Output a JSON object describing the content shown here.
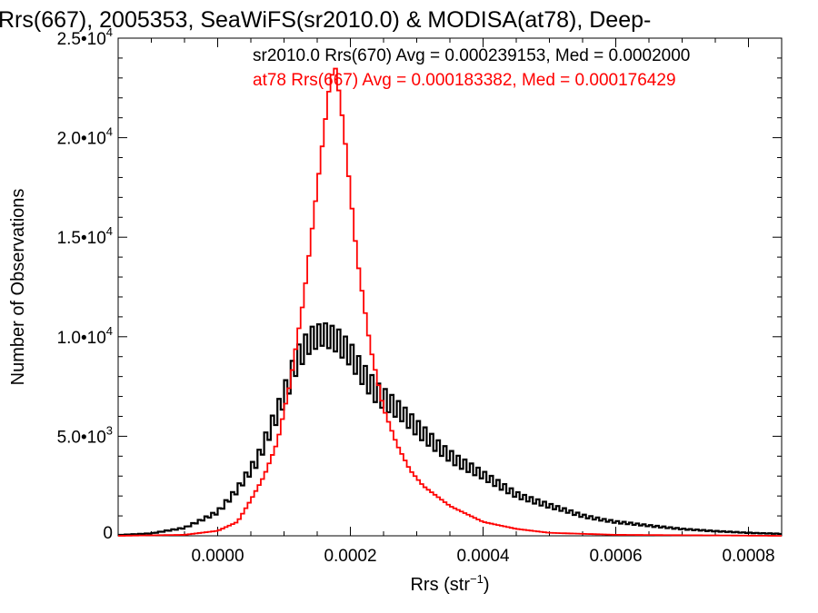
{
  "chart_data": {
    "type": "histogram",
    "title": "Rrs(667), 2005353, SeaWiFS(sr2010.0) & MODISA(at78), Deep-",
    "xlabel": "Rrs (str",
    "xlabel_sup": "−1",
    "xlabel_close": ")",
    "ylabel": "Number of Observations",
    "xlim": [
      -0.00015,
      0.00085
    ],
    "ylim": [
      0,
      25000
    ],
    "x_ticks": [
      {
        "value": 0.0,
        "label": "0.0000"
      },
      {
        "value": 0.0002,
        "label": "0.0002"
      },
      {
        "value": 0.0004,
        "label": "0.0004"
      },
      {
        "value": 0.0006,
        "label": "0.0006"
      },
      {
        "value": 0.0008,
        "label": "0.0008"
      }
    ],
    "y_ticks": [
      {
        "value": 0,
        "mant": "0",
        "exp": ""
      },
      {
        "value": 5000,
        "mant": "5.0•10",
        "exp": "3"
      },
      {
        "value": 10000,
        "mant": "1.0•10",
        "exp": "4"
      },
      {
        "value": 15000,
        "mant": "1.5•10",
        "exp": "4"
      },
      {
        "value": 20000,
        "mant": "2.0•10",
        "exp": "4"
      },
      {
        "value": 25000,
        "mant": "2.5•10",
        "exp": "4"
      }
    ],
    "bin_width": 5e-06,
    "series": [
      {
        "name": "sr2010.0 Rrs(670) Avg = 0.000239153, Med = 0.0002000",
        "color": "#000000",
        "curve": [
          [
            -0.00015,
            40
          ],
          [
            -0.0001,
            120
          ],
          [
            -5e-05,
            400
          ],
          [
            0.0,
            1200
          ],
          [
            3e-05,
            2300
          ],
          [
            6e-05,
            3800
          ],
          [
            9e-05,
            6300
          ],
          [
            0.00012,
            8900
          ],
          [
            0.00014,
            9800
          ],
          [
            0.00016,
            10000
          ],
          [
            0.00018,
            9800
          ],
          [
            0.0002,
            9200
          ],
          [
            0.00022,
            8200
          ],
          [
            0.00024,
            7200
          ],
          [
            0.00026,
            6600
          ],
          [
            0.00028,
            6000
          ],
          [
            0.0003,
            5400
          ],
          [
            0.00033,
            4600
          ],
          [
            0.00036,
            3800
          ],
          [
            0.0004,
            3000
          ],
          [
            0.00045,
            2100
          ],
          [
            0.0005,
            1500
          ],
          [
            0.00055,
            1000
          ],
          [
            0.0006,
            700
          ],
          [
            0.00065,
            500
          ],
          [
            0.0007,
            350
          ],
          [
            0.00075,
            230
          ],
          [
            0.0008,
            150
          ],
          [
            0.00085,
            100
          ]
        ],
        "noise": 700
      },
      {
        "name": "at78 Rrs(667) Avg = 0.000183382, Med = 0.000176429",
        "color": "#ff0000",
        "curve": [
          [
            -0.00015,
            0
          ],
          [
            -5e-05,
            50
          ],
          [
            0.0,
            250
          ],
          [
            3e-05,
            700
          ],
          [
            5e-05,
            1800
          ],
          [
            7e-05,
            3000
          ],
          [
            9e-05,
            4700
          ],
          [
            0.00011,
            7800
          ],
          [
            0.00013,
            12000
          ],
          [
            0.00015,
            17500
          ],
          [
            0.00017,
            23000
          ],
          [
            0.000178,
            23500
          ],
          [
            0.00019,
            20500
          ],
          [
            0.00021,
            14000
          ],
          [
            0.00023,
            9500
          ],
          [
            0.00025,
            6400
          ],
          [
            0.00027,
            4600
          ],
          [
            0.00029,
            3300
          ],
          [
            0.00031,
            2500
          ],
          [
            0.00035,
            1500
          ],
          [
            0.0004,
            700
          ],
          [
            0.00045,
            350
          ],
          [
            0.0005,
            150
          ],
          [
            0.0006,
            50
          ],
          [
            0.00085,
            0
          ]
        ],
        "noise": 0
      }
    ],
    "legend_position": "top-right"
  }
}
